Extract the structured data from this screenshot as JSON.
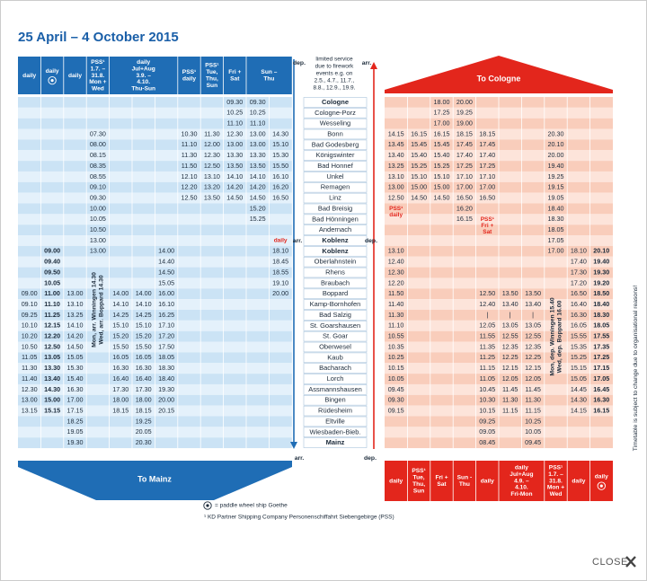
{
  "title": "25 April – 4 October 2015",
  "stations": [
    "Cologne",
    "Cologne-Porz",
    "Wesseling",
    "Bonn",
    "Bad Godesberg",
    "Königswinter",
    "Bad Honnef",
    "Unkel",
    "Remagen",
    "Linz",
    "Bad Breisig",
    "Bad Hönningen",
    "Andernach",
    "Koblenz",
    "Koblenz",
    "Oberlahnstein",
    "Rhens",
    "Braubach",
    "Boppard",
    "Kamp-Bornhofen",
    "Bad Salzig",
    "St. Goarshausen",
    "St. Goar",
    "Oberwesel",
    "Kaub",
    "Bacharach",
    "Lorch",
    "Assmannshausen",
    "Bingen",
    "Rüdesheim",
    "Eltville",
    "Wiesbaden-Bieb.",
    "Mainz"
  ],
  "top_note": [
    "limited service",
    "due to firework",
    "events e.g. on",
    "2.5., 4.7., 11.7.,",
    "8.8., 12.9., 19.9."
  ],
  "markers": {
    "top_left": "dep.",
    "top_right": "arr.",
    "koblenz_left": "arr.",
    "koblenz_right": "dep.",
    "bottom_left": "arr.",
    "bottom_right": "dep."
  },
  "left": {
    "direction": "To Mainz",
    "headers": [
      [
        "daily"
      ],
      [
        "daily"
      ],
      [
        "daily"
      ],
      [
        "PSS¹",
        "1.7. –",
        "31.8.",
        "Mon +",
        "Wed"
      ],
      [
        "daily",
        "Jul+Aug",
        "3.9. –",
        "4.10.",
        "Thu-Sun"
      ],
      [
        "PSS¹",
        "daily"
      ],
      [
        "PSS¹",
        "Tue,",
        "Thu,",
        "Sun"
      ],
      [
        "Fri +",
        "Sat"
      ],
      [
        "Sun –",
        "Thu"
      ]
    ],
    "vertical_note": [
      "Mon, arr. Winningen 14.30",
      "Wed, arr. Boppard 14.30"
    ],
    "rows": [
      [
        null,
        null,
        null,
        null,
        null,
        null,
        null,
        null,
        null,
        "09.30",
        "09.30",
        null
      ],
      [
        null,
        null,
        null,
        null,
        null,
        null,
        null,
        null,
        null,
        "10.25",
        "10.25",
        null
      ],
      [
        null,
        null,
        null,
        null,
        null,
        null,
        null,
        null,
        null,
        "11.10",
        "11.10",
        null
      ],
      [
        null,
        null,
        null,
        "07.30",
        null,
        null,
        null,
        "10.30",
        "11.30",
        "12.30",
        "13.00",
        "14.30"
      ],
      [
        null,
        null,
        null,
        "08.00",
        null,
        null,
        null,
        "11.10",
        "12.00",
        "13.00",
        "13.00",
        "15.10"
      ],
      [
        null,
        null,
        null,
        "08.15",
        null,
        null,
        null,
        "11.30",
        "12.30",
        "13.30",
        "13.30",
        "15.30"
      ],
      [
        null,
        null,
        null,
        "08.35",
        null,
        null,
        null,
        "11.50",
        "12.50",
        "13.50",
        "13.50",
        "15.50"
      ],
      [
        null,
        null,
        null,
        "08.55",
        null,
        null,
        null,
        "12.10",
        "13.10",
        "14.10",
        "14.10",
        "16.10"
      ],
      [
        null,
        null,
        null,
        "09.10",
        null,
        null,
        null,
        "12.20",
        "13.20",
        "14.20",
        "14.20",
        "16.20"
      ],
      [
        null,
        null,
        null,
        "09.30",
        null,
        null,
        null,
        "12.50",
        "13.50",
        "14.50",
        "14.50",
        "16.50"
      ],
      [
        null,
        null,
        null,
        "10.00",
        null,
        null,
        null,
        null,
        null,
        null,
        "15.20",
        null
      ],
      [
        null,
        null,
        null,
        "10.05",
        null,
        null,
        null,
        null,
        null,
        null,
        "15.25",
        null
      ],
      [
        null,
        null,
        null,
        "10.50",
        null,
        null,
        null,
        null,
        null,
        null,
        null,
        null
      ],
      [
        null,
        null,
        null,
        "13.00",
        null,
        null,
        null,
        null,
        null,
        null,
        null,
        [
          "daily"
        ]
      ],
      [
        null,
        "09.00",
        null,
        "13.00",
        null,
        null,
        "14.00",
        null,
        null,
        null,
        null,
        "18.10"
      ],
      [
        null,
        "09.40",
        null,
        null,
        null,
        null,
        "14.40",
        null,
        null,
        null,
        null,
        "18.45"
      ],
      [
        null,
        "09.50",
        null,
        null,
        null,
        null,
        "14.50",
        null,
        null,
        null,
        null,
        "18.55"
      ],
      [
        null,
        "10.05",
        null,
        null,
        null,
        null,
        "15.05",
        null,
        null,
        null,
        null,
        "19.10"
      ],
      [
        "09.00",
        "11.00",
        "13.00",
        null,
        "14.00",
        "14.00",
        "16.00",
        null,
        null,
        null,
        null,
        "20.00"
      ],
      [
        "09.10",
        "11.10",
        "13.10",
        null,
        "14.10",
        "14.10",
        "16.10",
        null,
        null,
        null,
        null,
        null
      ],
      [
        "09.25",
        "11.25",
        "13.25",
        null,
        "14.25",
        "14.25",
        "16.25",
        null,
        null,
        null,
        null,
        null
      ],
      [
        "10.10",
        "12.15",
        "14.10",
        null,
        "15.10",
        "15.10",
        "17.10",
        null,
        null,
        null,
        null,
        null
      ],
      [
        "10.20",
        "12.20",
        "14.20",
        null,
        "15.20",
        "15.20",
        "17.20",
        null,
        null,
        null,
        null,
        null
      ],
      [
        "10.50",
        "12.50",
        "14.50",
        null,
        "15.50",
        "15.50",
        "17.50",
        null,
        null,
        null,
        null,
        null
      ],
      [
        "11.05",
        "13.05",
        "15.05",
        null,
        "16.05",
        "16.05",
        "18.05",
        null,
        null,
        null,
        null,
        null
      ],
      [
        "11.30",
        "13.30",
        "15.30",
        null,
        "16.30",
        "16.30",
        "18.30",
        null,
        null,
        null,
        null,
        null
      ],
      [
        "11.40",
        "13.40",
        "15.40",
        null,
        "16.40",
        "16.40",
        "18.40",
        null,
        null,
        null,
        null,
        null
      ],
      [
        "12.30",
        "14.30",
        "16.30",
        null,
        "17.30",
        "17.30",
        "19.30",
        null,
        null,
        null,
        null,
        null
      ],
      [
        "13.00",
        "15.00",
        "17.00",
        null,
        "18.00",
        "18.00",
        "20.00",
        null,
        null,
        null,
        null,
        null
      ],
      [
        "13.15",
        "15.15",
        "17.15",
        null,
        "18.15",
        "18.15",
        "20.15",
        null,
        null,
        null,
        null,
        null
      ],
      [
        null,
        null,
        "18.25",
        null,
        null,
        "19.25",
        null,
        null,
        null,
        null,
        null,
        null
      ],
      [
        null,
        null,
        "19.05",
        null,
        null,
        "20.05",
        null,
        null,
        null,
        null,
        null,
        null
      ],
      [
        null,
        null,
        "19.30",
        null,
        null,
        "20.30",
        null,
        null,
        null,
        null,
        null,
        null
      ]
    ]
  },
  "right": {
    "direction": "To Cologne",
    "headers": [
      [
        "daily"
      ],
      [
        "PSS¹",
        "Tue,",
        "Thu,",
        "Sun"
      ],
      [
        "Fri +",
        "Sat"
      ],
      [
        "Sun -",
        "Thu"
      ],
      [
        "daily"
      ],
      [
        "daily",
        "Jul+Aug",
        "4.9. –",
        "4.10.",
        "Fri-Mon"
      ],
      [
        "PSS¹",
        "1.7. –",
        "31.8.",
        "Mon +",
        "Wed"
      ],
      [
        "daily"
      ],
      [
        "daily"
      ]
    ],
    "vertical_note": [
      "Mon, dep. Winningen 15.40",
      "Wed, dep. Boppard 16.00"
    ],
    "rows": [
      [
        null,
        null,
        "18.00",
        "20.00",
        null,
        null,
        null,
        null,
        null,
        null
      ],
      [
        null,
        null,
        "17.25",
        "19.25",
        null,
        null,
        null,
        null,
        null,
        null
      ],
      [
        null,
        null,
        "17.00",
        "19.00",
        null,
        null,
        null,
        null,
        null,
        null
      ],
      [
        "14.15",
        "16.15",
        "16.15",
        "18.15",
        "18.15",
        null,
        null,
        "20.30",
        null,
        null
      ],
      [
        "13.45",
        "15.45",
        "15.45",
        "17.45",
        "17.45",
        null,
        null,
        "20.10",
        null,
        null
      ],
      [
        "13.40",
        "15.40",
        "15.40",
        "17.40",
        "17.40",
        null,
        null,
        "20.00",
        null,
        null
      ],
      [
        "13.25",
        "15.25",
        "15.25",
        "17.25",
        "17.25",
        null,
        null,
        "19.40",
        null,
        null
      ],
      [
        "13.10",
        "15.10",
        "15.10",
        "17.10",
        "17.10",
        null,
        null,
        "19.25",
        null,
        null
      ],
      [
        "13.00",
        "15.00",
        "15.00",
        "17.00",
        "17.00",
        null,
        null,
        "19.15",
        null,
        null
      ],
      [
        "12.50",
        "14.50",
        "14.50",
        "16.50",
        "16.50",
        null,
        null,
        "19.05",
        null,
        null
      ],
      [
        [
          "PSS¹",
          "daily"
        ],
        null,
        null,
        "16.20",
        null,
        null,
        null,
        "18.40",
        null,
        null
      ],
      [
        null,
        null,
        null,
        "16.15",
        [
          "PSS¹",
          "Fri +",
          "Sat"
        ],
        null,
        null,
        "18.30",
        null,
        null
      ],
      [
        null,
        null,
        null,
        null,
        null,
        null,
        null,
        "18.05",
        null,
        null
      ],
      [
        null,
        null,
        null,
        null,
        null,
        null,
        null,
        "17.05",
        null,
        null
      ],
      [
        "13.10",
        null,
        null,
        null,
        null,
        null,
        null,
        "17.00",
        "18.10",
        "20.10"
      ],
      [
        "12.40",
        null,
        null,
        null,
        null,
        null,
        null,
        null,
        "17.40",
        "19.40"
      ],
      [
        "12.30",
        null,
        null,
        null,
        null,
        null,
        null,
        null,
        "17.30",
        "19.30"
      ],
      [
        "12.20",
        null,
        null,
        null,
        null,
        null,
        null,
        null,
        "17.20",
        "19.20"
      ],
      [
        "11.50",
        null,
        null,
        null,
        "12.50",
        "13.50",
        "13.50",
        null,
        "16.50",
        "18.50"
      ],
      [
        "11.40",
        null,
        null,
        null,
        "12.40",
        "13.40",
        "13.40",
        null,
        "16.40",
        "18.40"
      ],
      [
        "11.30",
        null,
        null,
        null,
        "|",
        "|",
        "|",
        null,
        "16.30",
        "18.30"
      ],
      [
        "11.10",
        null,
        null,
        null,
        "12.05",
        "13.05",
        "13.05",
        null,
        "16.05",
        "18.05"
      ],
      [
        "10.55",
        null,
        null,
        null,
        "11.55",
        "12.55",
        "12.55",
        null,
        "15.55",
        "17.55"
      ],
      [
        "10.35",
        null,
        null,
        null,
        "11.35",
        "12.35",
        "12.35",
        null,
        "15.35",
        "17.35"
      ],
      [
        "10.25",
        null,
        null,
        null,
        "11.25",
        "12.25",
        "12.25",
        null,
        "15.25",
        "17.25"
      ],
      [
        "10.15",
        null,
        null,
        null,
        "11.15",
        "12.15",
        "12.15",
        null,
        "15.15",
        "17.15"
      ],
      [
        "10.05",
        null,
        null,
        null,
        "11.05",
        "12.05",
        "12.05",
        null,
        "15.05",
        "17.05"
      ],
      [
        "09.45",
        null,
        null,
        null,
        "10.45",
        "11.45",
        "11.45",
        null,
        "14.45",
        "16.45"
      ],
      [
        "09.30",
        null,
        null,
        null,
        "10.30",
        "11.30",
        "11.30",
        null,
        "14.30",
        "16.30"
      ],
      [
        "09.15",
        null,
        null,
        null,
        "10.15",
        "11.15",
        "11.15",
        null,
        "14.15",
        "16.15"
      ],
      [
        null,
        null,
        null,
        null,
        "09.25",
        null,
        "10.25",
        null,
        null,
        null
      ],
      [
        null,
        null,
        null,
        null,
        "09.05",
        null,
        "10.05",
        null,
        null,
        null
      ],
      [
        null,
        null,
        null,
        null,
        "08.45",
        null,
        "09.45",
        null,
        null,
        null
      ]
    ]
  },
  "footnotes": [
    "= paddle wheel ship Goethe",
    "¹ KD Partner Shipping Company Personenschiffahrt Siebengebirge (PSS)"
  ],
  "side_note": "Timetable is subject to change due to organisational reasons!",
  "close": "CLOSE"
}
